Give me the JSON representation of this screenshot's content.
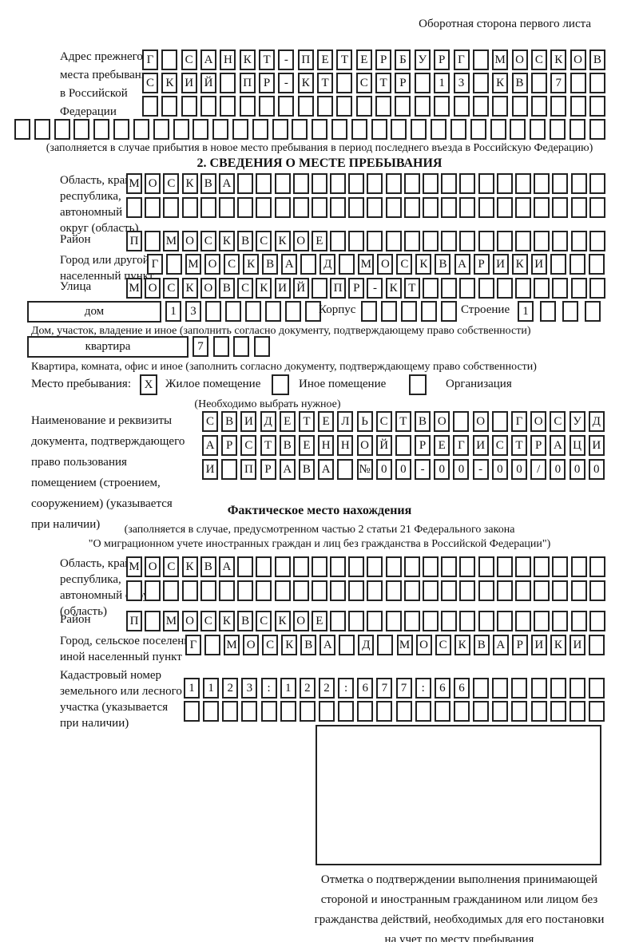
{
  "header": {
    "back_note": "Оборотная сторона первого листа"
  },
  "prev_address": {
    "label_lines": [
      "Адрес прежнего",
      "места пребывания",
      "в Российской",
      "Федерации"
    ],
    "row1": {
      "text": "Г САНКТ-ПЕТЕРБУРГ МОСКОВ",
      "count": 24
    },
    "row2": {
      "text": "СКИЙ ПР-КТ СТР 13 КВ 7",
      "count": 24
    },
    "row3": {
      "text": "",
      "count": 24
    },
    "row4": {
      "text": "",
      "count": 30
    },
    "note": "(заполняется в случае прибытия в новое место пребывания в период последнего въезда в Российскую Федерацию)"
  },
  "section2": {
    "title": "2. СВЕДЕНИЯ О МЕСТЕ ПРЕБЫВАНИЯ",
    "region": {
      "label_lines": [
        "Область, край,",
        "республика,",
        "автономный",
        "округ (область)"
      ],
      "row1": {
        "text": "МОСКВА",
        "count": 26
      },
      "row2": {
        "text": "",
        "count": 26
      }
    },
    "district": {
      "label": "Район",
      "row": {
        "text": "П МОСКВСКОЕ",
        "count": 26
      }
    },
    "city": {
      "label_lines": [
        "Город или другой",
        "населенный пункт"
      ],
      "row": {
        "text": "Г МОСКВА Д МОСКВАРИКИ",
        "count": 24
      }
    },
    "street": {
      "label": "Улица",
      "row": {
        "text": "МОСКОВСКИЙ ПР-КТ",
        "count": 26
      }
    },
    "house": {
      "box_label": "дом",
      "cells": {
        "text": "13",
        "count": 8
      },
      "korpus_label": "Корпус",
      "korpus_cells": {
        "text": "",
        "count": 5
      },
      "stroenie_label": "Строение",
      "stroenie_cells": {
        "text": "1",
        "count": 4
      },
      "note": "Дом, участок, владение и иное (заполнить согласно документу, подтверждающему право собственности)"
    },
    "apartment": {
      "box_label": "квартира",
      "cells": {
        "text": "7",
        "count": 4
      },
      "note": "Квартира, комната, офис и иное (заполнить согласно документу, подтверждающему право собственности)"
    },
    "stay_type": {
      "label": "Место пребывания:",
      "options": [
        {
          "checked": "X",
          "label": "Жилое помещение"
        },
        {
          "checked": "",
          "label": "Иное помещение"
        },
        {
          "checked": "",
          "label": "Организация"
        }
      ],
      "note": "(Необходимо выбрать нужное)"
    },
    "document": {
      "label_lines": [
        "Наименование и реквизиты",
        "документа, подтверждающего",
        "право пользования",
        "помещением (строением,",
        "сооружением) (указывается",
        "при наличии)"
      ],
      "row1": {
        "text": "СВИДЕТЕЛЬСТВО О ГОСУД",
        "count": 21
      },
      "row2": {
        "text": "АРСТВЕННОЙ РЕГИСТРАЦИ",
        "count": 21
      },
      "row3": {
        "text": "И ПРАВА №00-00-00/000",
        "count": 21
      }
    }
  },
  "actual_location": {
    "title": "Фактическое место нахождения",
    "note_line1": "(заполняется в случае, предусмотренном частью 2 статьи 21 Федерального закона",
    "note_line2": "\"О миграционном учете иностранных граждан и лиц без гражданства в Российской Федерации\")",
    "region": {
      "label_lines": [
        "Область, край,",
        "республика,",
        "автономный округ",
        "(область)"
      ],
      "row1": {
        "text": "МОСКВА",
        "count": 26
      },
      "row2": {
        "text": "",
        "count": 26
      }
    },
    "district": {
      "label": "Район",
      "row": {
        "text": "П МОСКВСКОЕ",
        "count": 26
      }
    },
    "city": {
      "label_lines": [
        "Город, сельское поселение,",
        "иной населенный пункт"
      ],
      "row": {
        "text": "Г МОСКВА Д МОСКВАРИКИ",
        "count": 22
      }
    },
    "cadastre": {
      "label_lines": [
        "Кадастровый номер",
        "земельного или лесного",
        "участка (указывается",
        "при наличии)"
      ],
      "row1": {
        "text": "1123:122:677:66",
        "count": 22
      },
      "row2": {
        "text": "",
        "count": 22
      }
    },
    "stamp_caption_lines": [
      "Отметка о подтверждении выполнения принимающей",
      "стороной и иностранным гражданином или лицом без",
      "гражданства действий, необходимых для его постановки",
      "на учет по месту пребывания"
    ]
  }
}
